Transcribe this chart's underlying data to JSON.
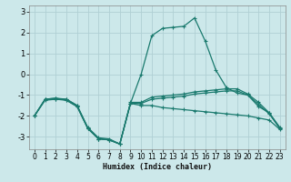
{
  "title": "",
  "xlabel": "Humidex (Indice chaleur)",
  "bg_color": "#cce8ea",
  "grid_color": "#b0d0d4",
  "line_color": "#1a7a6e",
  "xlim": [
    -0.5,
    23.5
  ],
  "ylim": [
    -3.6,
    3.3
  ],
  "yticks": [
    -3,
    -2,
    -1,
    0,
    1,
    2,
    3
  ],
  "xticks": [
    0,
    1,
    2,
    3,
    4,
    5,
    6,
    7,
    8,
    9,
    10,
    11,
    12,
    13,
    14,
    15,
    16,
    17,
    18,
    19,
    20,
    21,
    22,
    23
  ],
  "series": [
    {
      "x": [
        0,
        1,
        2,
        3,
        4,
        5,
        6,
        7,
        8,
        9,
        10,
        11,
        12,
        13,
        14,
        15,
        16,
        17,
        18,
        19,
        20,
        21,
        22,
        23
      ],
      "y": [
        -2.0,
        -1.2,
        -1.2,
        -1.2,
        -1.5,
        -2.6,
        -3.1,
        -3.15,
        -3.35,
        -1.4,
        0.0,
        1.85,
        2.2,
        2.25,
        2.3,
        2.7,
        1.6,
        0.2,
        -0.65,
        -0.9,
        -1.0,
        -1.55,
        -1.85,
        -2.6
      ]
    },
    {
      "x": [
        0,
        1,
        2,
        3,
        4,
        5,
        6,
        7,
        8,
        9,
        10,
        11,
        12,
        13,
        14,
        15,
        16,
        17,
        18,
        19,
        20,
        21,
        22,
        23
      ],
      "y": [
        -2.0,
        -1.2,
        -1.15,
        -1.2,
        -1.5,
        -2.55,
        -3.05,
        -3.1,
        -3.35,
        -1.35,
        -1.35,
        -1.1,
        -1.05,
        -1.0,
        -0.95,
        -0.85,
        -0.8,
        -0.75,
        -0.7,
        -0.7,
        -0.95,
        -1.35,
        -1.85,
        -2.55
      ]
    },
    {
      "x": [
        0,
        1,
        2,
        3,
        4,
        5,
        6,
        7,
        8,
        9,
        10,
        11,
        12,
        13,
        14,
        15,
        16,
        17,
        18,
        19,
        20,
        21,
        22,
        23
      ],
      "y": [
        -2.0,
        -1.2,
        -1.15,
        -1.25,
        -1.55,
        -2.6,
        -3.1,
        -3.15,
        -3.35,
        -1.4,
        -1.4,
        -1.2,
        -1.15,
        -1.1,
        -1.05,
        -0.95,
        -0.9,
        -0.85,
        -0.8,
        -0.8,
        -1.0,
        -1.45,
        -1.9,
        -2.6
      ]
    },
    {
      "x": [
        0,
        1,
        2,
        3,
        4,
        5,
        6,
        7,
        8,
        9,
        10,
        11,
        12,
        13,
        14,
        15,
        16,
        17,
        18,
        19,
        20,
        21,
        22,
        23
      ],
      "y": [
        -2.0,
        -1.25,
        -1.2,
        -1.25,
        -1.55,
        -2.6,
        -3.1,
        -3.15,
        -3.35,
        -1.4,
        -1.5,
        -1.5,
        -1.6,
        -1.65,
        -1.7,
        -1.75,
        -1.8,
        -1.85,
        -1.9,
        -1.95,
        -2.0,
        -2.1,
        -2.2,
        -2.65
      ]
    }
  ]
}
